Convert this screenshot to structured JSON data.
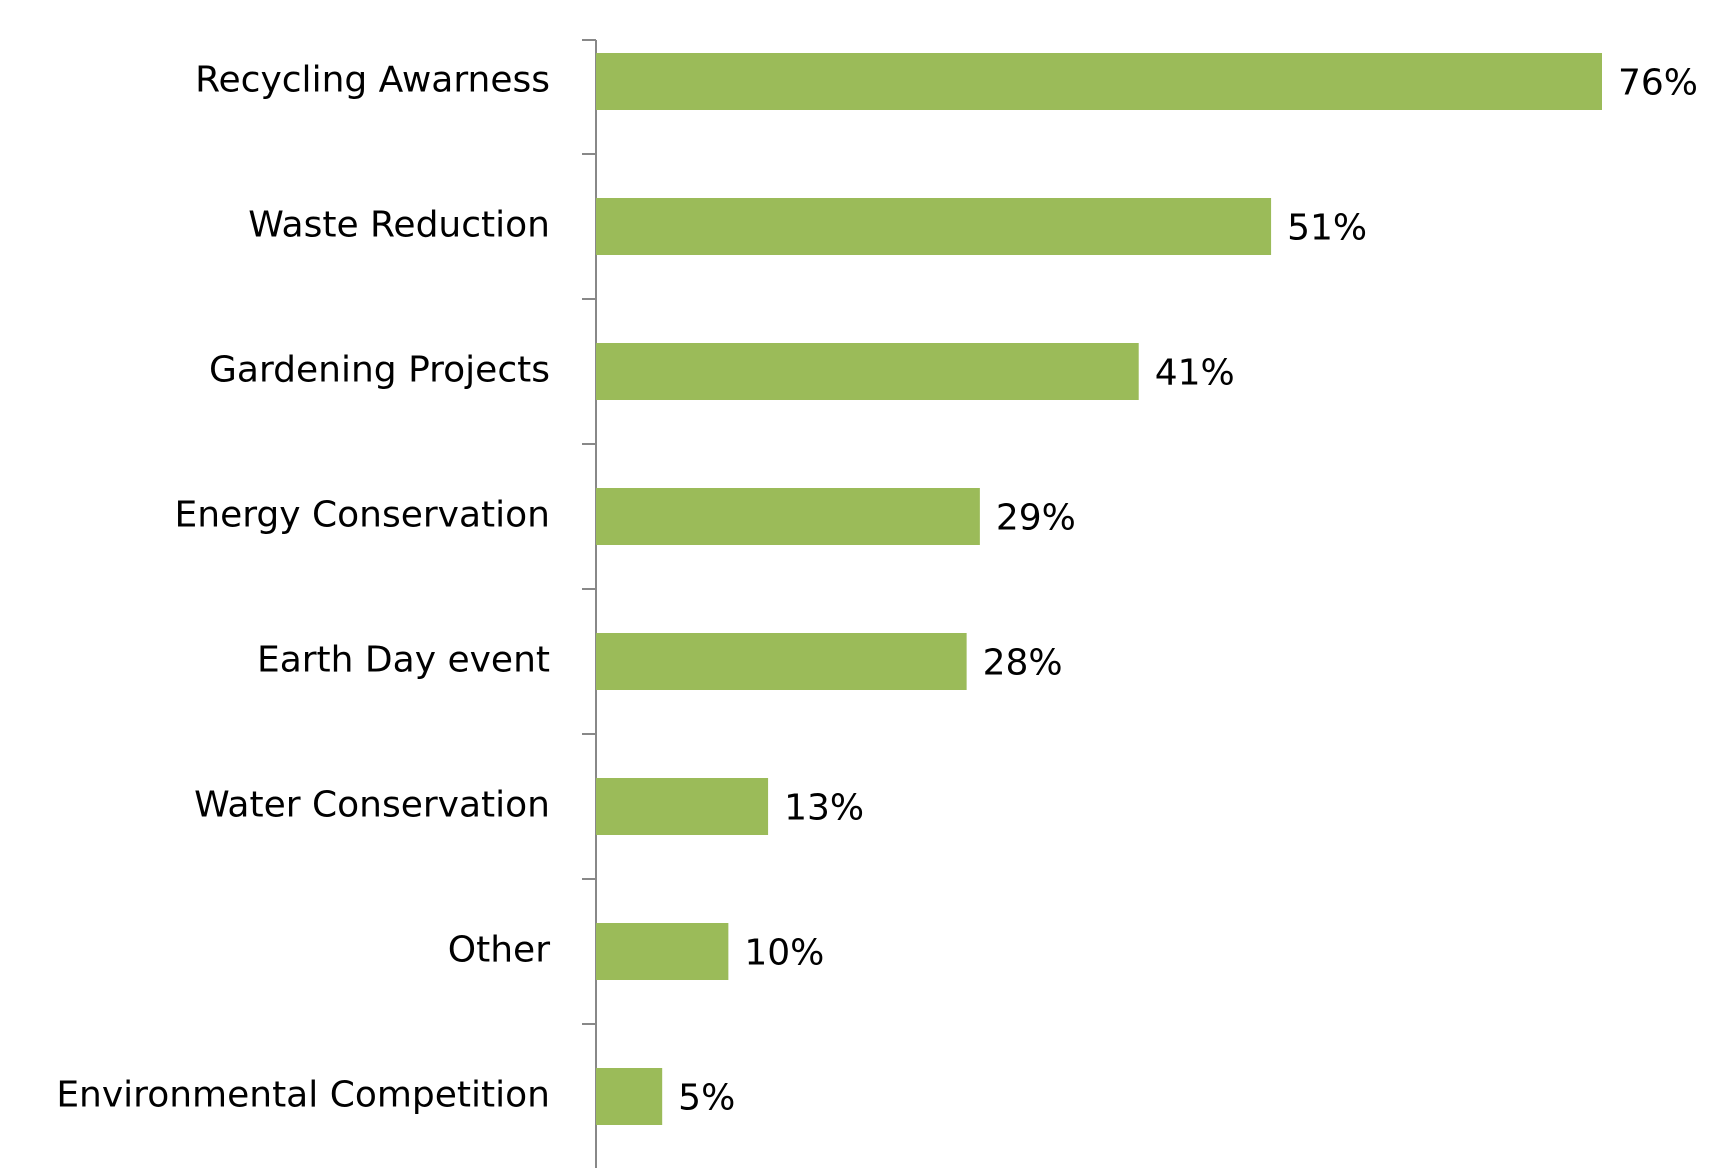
{
  "chart_data": {
    "type": "bar",
    "orientation": "horizontal",
    "categories": [
      "Recycling Awarness",
      "Waste Reduction",
      "Gardening Projects",
      "Energy Conservation",
      "Earth Day event",
      "Water Conservation",
      "Other",
      "Environmental Competition"
    ],
    "values": [
      76,
      51,
      41,
      29,
      28,
      13,
      10,
      5
    ],
    "value_labels": [
      "76%",
      "51%",
      "41%",
      "29%",
      "28%",
      "13%",
      "10%",
      "5%"
    ],
    "color": "#9bbb59"
  }
}
